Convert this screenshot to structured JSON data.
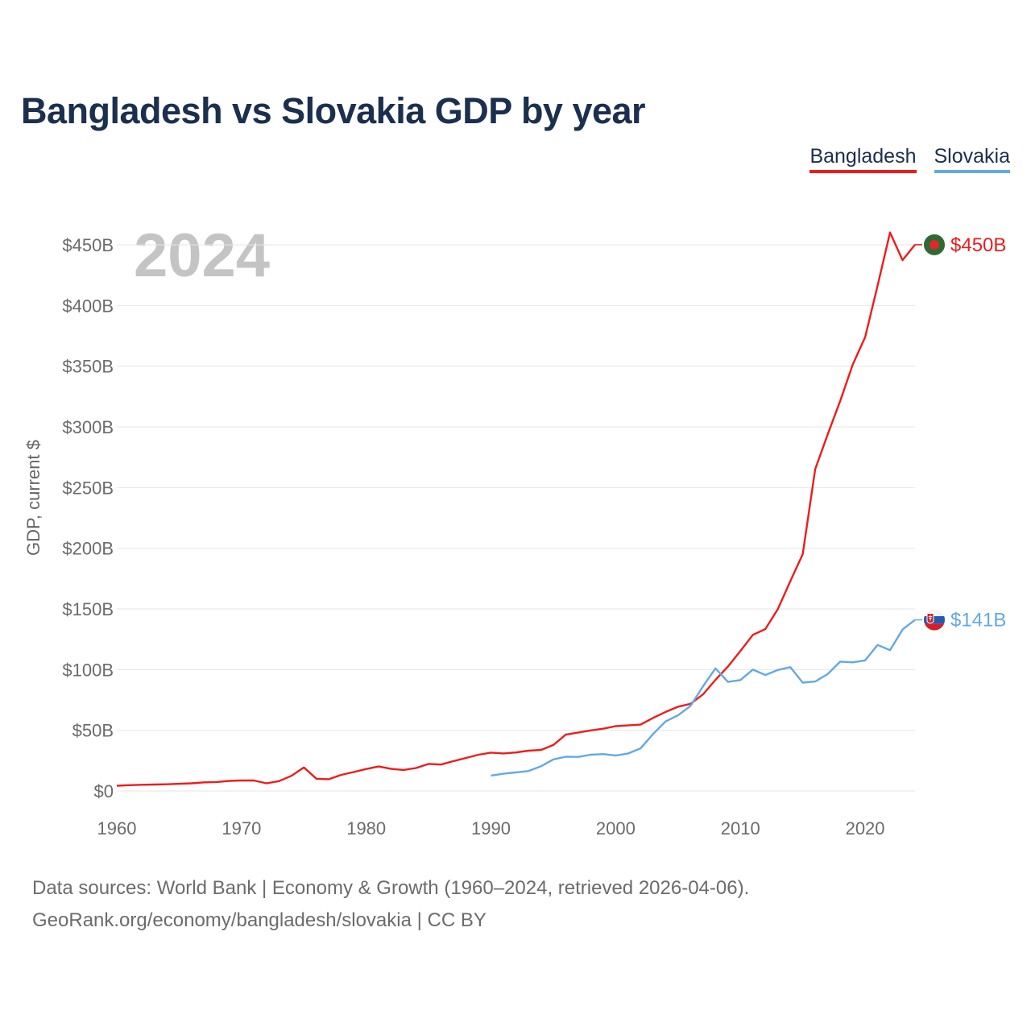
{
  "title": "Bangladesh vs Slovakia GDP by year",
  "year_display": "2024",
  "legend": {
    "bangladesh": "Bangladesh",
    "slovakia": "Slovakia"
  },
  "footer": {
    "line1": "Data sources: World Bank | Economy & Growth (1960–2024, retrieved 2026-04-06).",
    "line2": "GeoRank.org/economy/bangladesh/slovakia | CC BY"
  },
  "colors": {
    "bangladesh": "#ee1c1c",
    "slovakia": "#64a8e3",
    "title": "#1b2f4e",
    "grid": "#e6e6e6",
    "watermark": "#c4c4c4"
  },
  "chart_data": {
    "type": "line",
    "title": "Bangladesh vs Slovakia GDP by year",
    "xlabel": "",
    "ylabel": "GDP, current $",
    "xlim": [
      1960,
      2024
    ],
    "ylim": [
      0,
      450
    ],
    "y_unit": "billion USD",
    "x_ticks": [
      1960,
      1970,
      1980,
      1990,
      2000,
      2010,
      2020
    ],
    "y_ticks": [
      {
        "value": 0,
        "label": "$0"
      },
      {
        "value": 50,
        "label": "$50B"
      },
      {
        "value": 100,
        "label": "$100B"
      },
      {
        "value": 150,
        "label": "$150B"
      },
      {
        "value": 200,
        "label": "$200B"
      },
      {
        "value": 250,
        "label": "$250B"
      },
      {
        "value": 300,
        "label": "$300B"
      },
      {
        "value": 350,
        "label": "$350B"
      },
      {
        "value": 400,
        "label": "$400B"
      },
      {
        "value": 450,
        "label": "$450B"
      }
    ],
    "grid": true,
    "legend_position": "top-right",
    "series": [
      {
        "name": "Bangladesh",
        "color": "#ee1c1c",
        "end_label": "$450B",
        "x": [
          1960,
          1961,
          1962,
          1963,
          1964,
          1965,
          1966,
          1967,
          1968,
          1969,
          1970,
          1971,
          1972,
          1973,
          1974,
          1975,
          1976,
          1977,
          1978,
          1979,
          1980,
          1981,
          1982,
          1983,
          1984,
          1985,
          1986,
          1987,
          1988,
          1989,
          1990,
          1991,
          1992,
          1993,
          1994,
          1995,
          1996,
          1997,
          1998,
          1999,
          2000,
          2001,
          2002,
          2003,
          2004,
          2005,
          2006,
          2007,
          2008,
          2009,
          2010,
          2011,
          2012,
          2013,
          2014,
          2015,
          2016,
          2017,
          2018,
          2019,
          2020,
          2021,
          2022,
          2023,
          2024
        ],
        "values": [
          4.3,
          4.8,
          5.1,
          5.3,
          5.5,
          5.9,
          6.3,
          7.1,
          7.4,
          8.3,
          8.7,
          8.6,
          6.3,
          8.1,
          12.5,
          19.4,
          10.1,
          9.7,
          13.3,
          15.6,
          18.1,
          20.2,
          18.2,
          17.3,
          18.9,
          22.3,
          21.8,
          24.6,
          27.2,
          29.9,
          31.6,
          30.9,
          31.7,
          33.2,
          33.8,
          37.9,
          46.4,
          48.2,
          49.9,
          51.3,
          53.4,
          54.0,
          54.7,
          60.2,
          65.1,
          69.4,
          71.8,
          79.6,
          91.6,
          102.5,
          115.3,
          128.6,
          133.4,
          149.9,
          172.9,
          195.1,
          265.2,
          293.8,
          321.4,
          351.2,
          374.0,
          416.3,
          460.2,
          437.4,
          450.1
        ]
      },
      {
        "name": "Slovakia",
        "color": "#64a8e3",
        "end_label": "$141B",
        "x": [
          1990,
          1991,
          1992,
          1993,
          1994,
          1995,
          1996,
          1997,
          1998,
          1999,
          2000,
          2001,
          2002,
          2003,
          2004,
          2005,
          2006,
          2007,
          2008,
          2009,
          2010,
          2011,
          2012,
          2013,
          2014,
          2015,
          2016,
          2017,
          2018,
          2019,
          2020,
          2021,
          2022,
          2023,
          2024
        ],
        "values": [
          12.7,
          14.2,
          15.3,
          16.4,
          20.3,
          26.0,
          28.2,
          28.1,
          29.9,
          30.4,
          29.2,
          30.9,
          35.1,
          46.9,
          57.3,
          62.4,
          70.1,
          86.2,
          101.0,
          89.9,
          91.4,
          100.0,
          95.6,
          99.7,
          102.0,
          89.3,
          90.2,
          96.3,
          106.6,
          106.0,
          107.6,
          120.3,
          116.0,
          133.0,
          141.0
        ]
      }
    ]
  }
}
